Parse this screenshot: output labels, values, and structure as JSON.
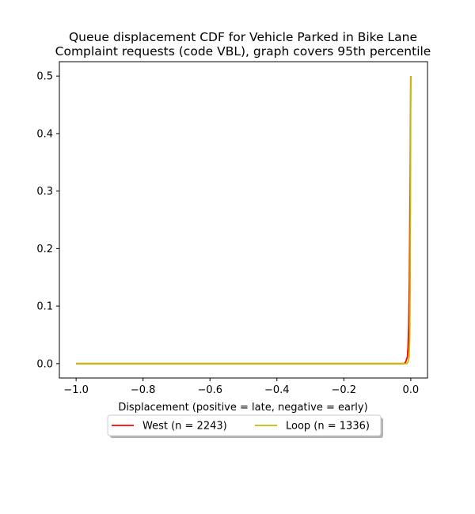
{
  "chart_data": {
    "type": "line",
    "title_lines": [
      "Queue displacement CDF for Vehicle Parked in Bike Lane",
      "Complaint  requests (code VBL), graph covers 95th percentile"
    ],
    "xlabel": "Displacement (positive = late, negative = early)",
    "ylabel": "",
    "xlim": [
      -1.05,
      0.05
    ],
    "ylim": [
      -0.025,
      0.525
    ],
    "xticks": [
      -1.0,
      -0.8,
      -0.6,
      -0.4,
      -0.2,
      0.0
    ],
    "xtick_labels": [
      "−1.0",
      "−0.8",
      "−0.6",
      "−0.4",
      "−0.2",
      "0.0"
    ],
    "yticks": [
      0.0,
      0.1,
      0.2,
      0.3,
      0.4,
      0.5
    ],
    "ytick_labels": [
      "0.0",
      "0.1",
      "0.2",
      "0.3",
      "0.4",
      "0.5"
    ],
    "grid": false,
    "legend_position": "below-center",
    "series": [
      {
        "name": "West (n = 2243)",
        "color": "#ff0000",
        "x": [
          -1.0,
          -0.02,
          -0.015,
          -0.01,
          -0.008,
          -0.006,
          -0.004,
          -0.002,
          0.0
        ],
        "y": [
          0.0,
          0.0,
          0.003,
          0.012,
          0.03,
          0.07,
          0.15,
          0.3,
          0.5
        ]
      },
      {
        "name": "Loop (n = 1336)",
        "color": "#bfbf00",
        "x": [
          -1.0,
          -0.012,
          -0.008,
          -0.005,
          -0.003,
          -0.002,
          -0.001,
          0.0
        ],
        "y": [
          0.0,
          0.0,
          0.003,
          0.012,
          0.05,
          0.13,
          0.28,
          0.5
        ]
      }
    ]
  }
}
